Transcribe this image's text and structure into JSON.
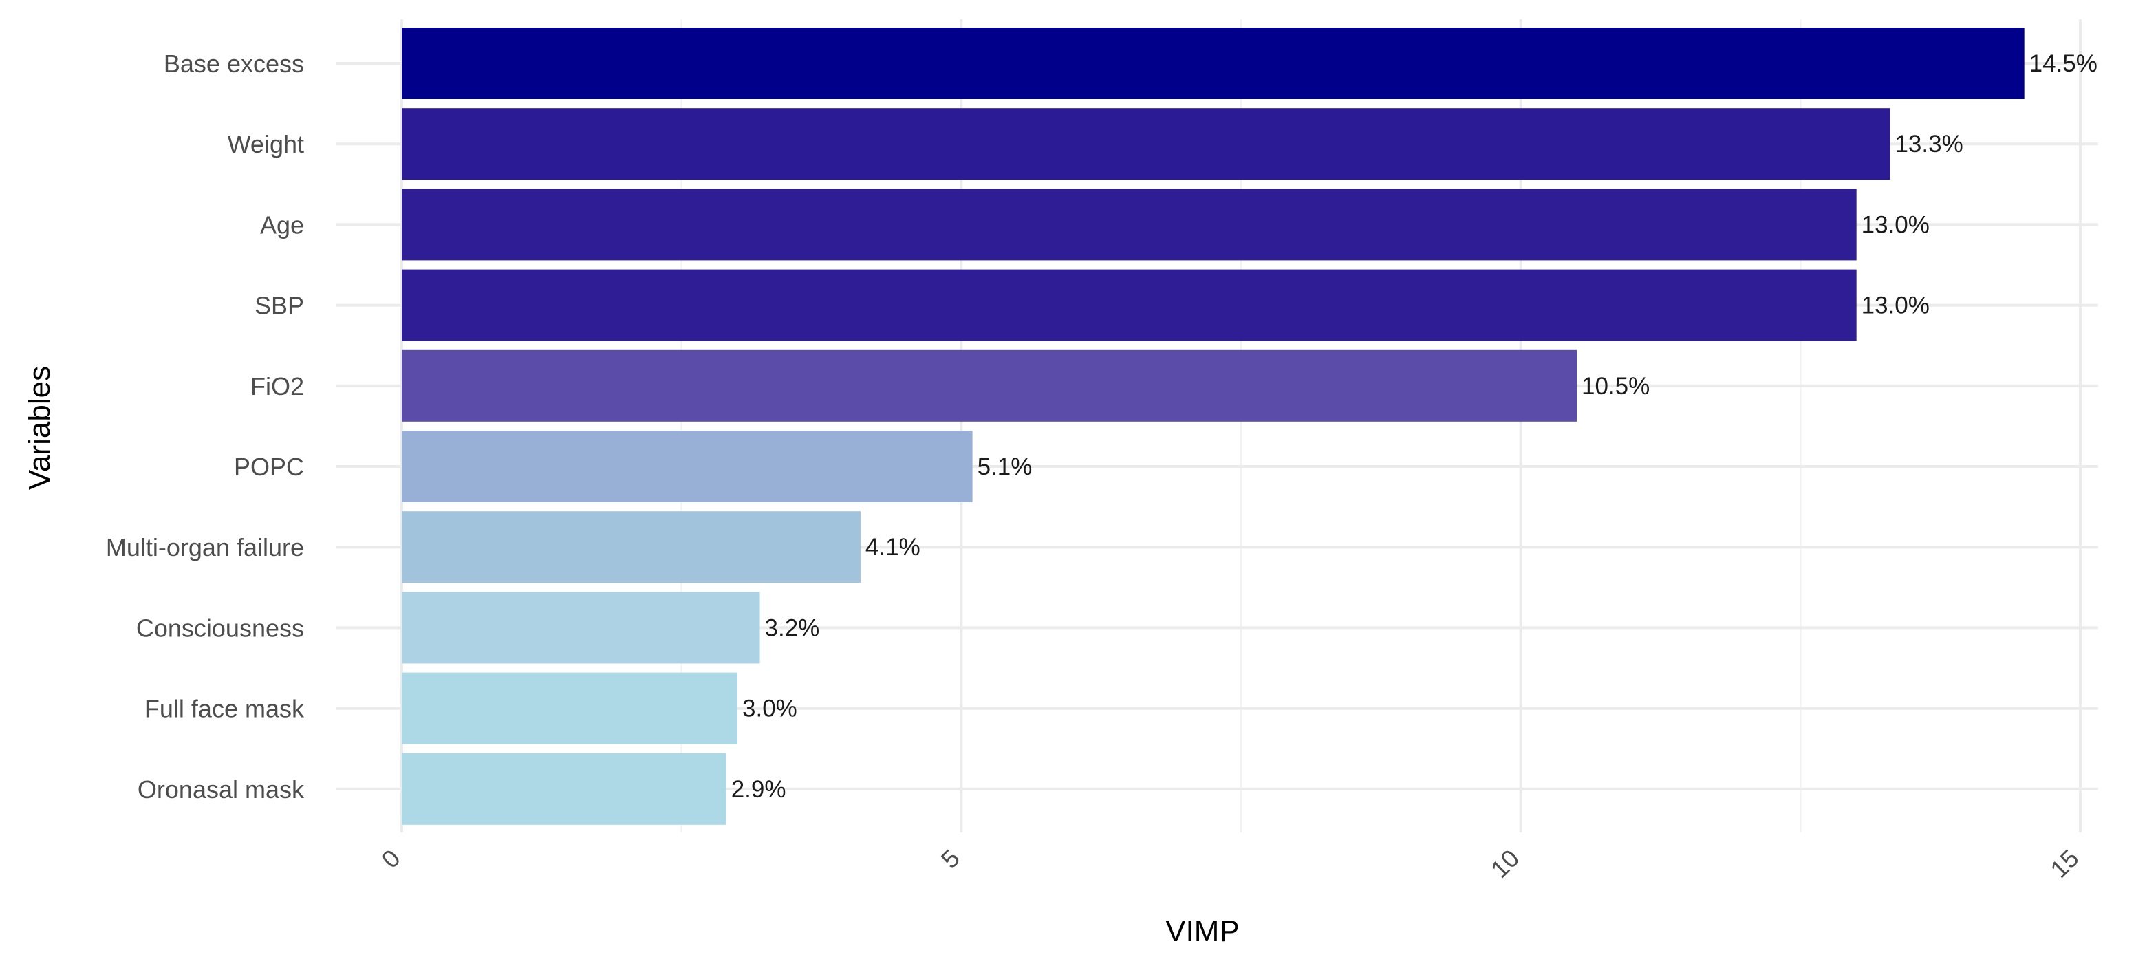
{
  "chart_data": {
    "type": "bar",
    "orientation": "horizontal",
    "title": "",
    "xlabel": "VIMP",
    "ylabel": "Variables",
    "xlim": [
      0,
      15
    ],
    "x_ticks": [
      0,
      5,
      10,
      15
    ],
    "x_tick_labels": [
      "0",
      "5",
      "10",
      "15"
    ],
    "x_tick_label_rotation_deg": -45,
    "grid": true,
    "legend": "none",
    "categories": [
      "Base excess",
      "Weight",
      "Age",
      "SBP",
      "FiO2",
      "POPC",
      "Multi-organ failure",
      "Consciousness",
      "Full face mask",
      "Oronasal mask"
    ],
    "values": [
      14.5,
      13.3,
      13.0,
      13.0,
      10.5,
      5.1,
      4.1,
      3.2,
      3.0,
      2.9
    ],
    "data_labels": [
      "14.5%",
      "13.3%",
      "13.0%",
      "13.0%",
      "10.5%",
      "5.1%",
      "4.1%",
      "3.2%",
      "3.0%",
      "2.9%"
    ],
    "bar_colors": [
      "#00008b",
      "#2b1c96",
      "#2e1d95",
      "#2e1d95",
      "#5a4ca8",
      "#99b0d6",
      "#a2c3dc",
      "#acd2e4",
      "#add8e6",
      "#add8e6"
    ]
  }
}
